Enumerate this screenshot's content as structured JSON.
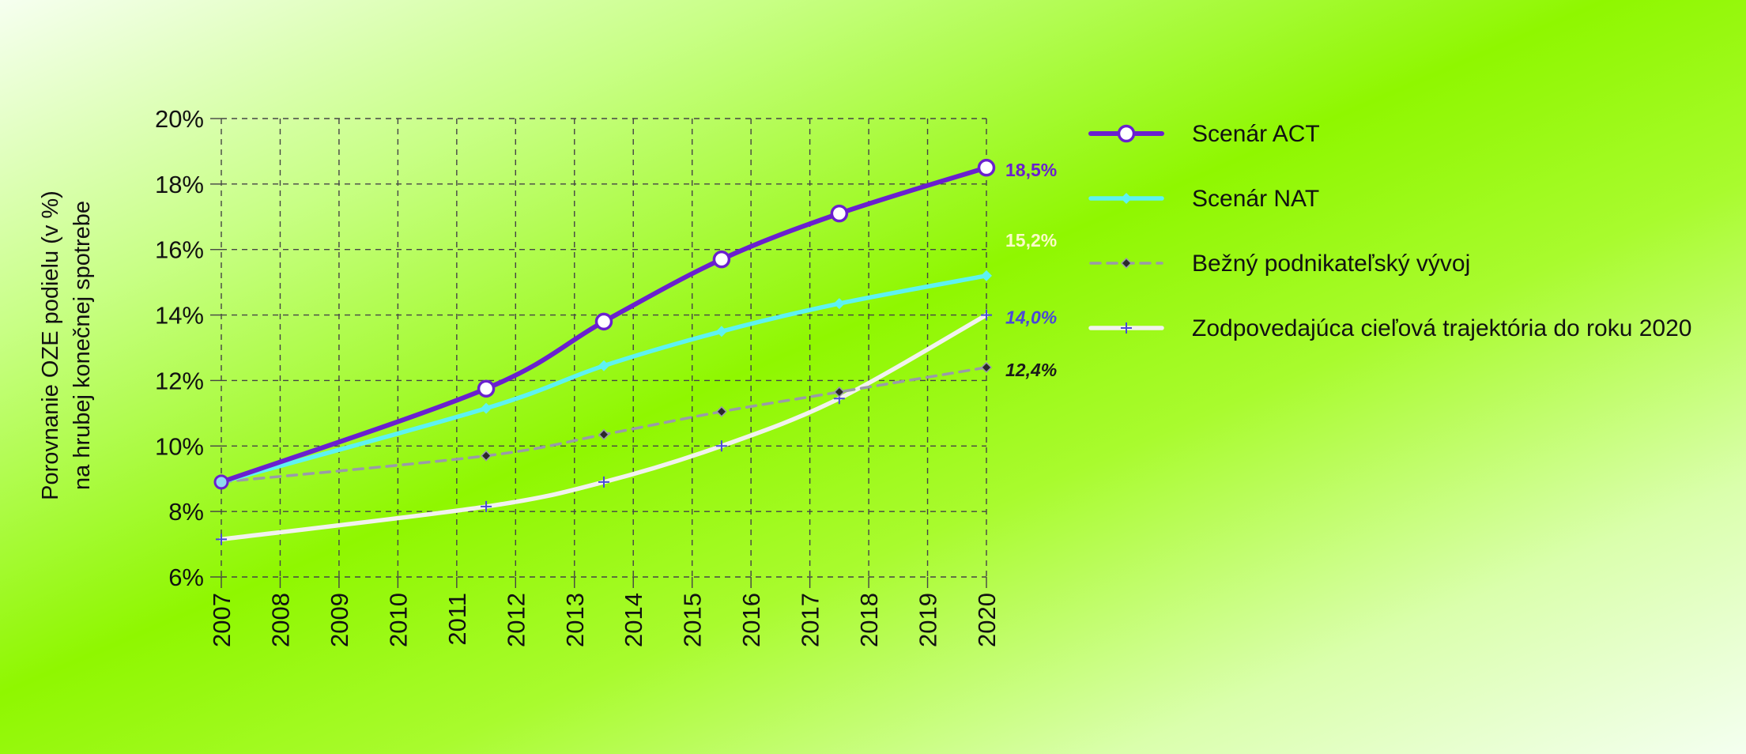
{
  "chart_data": {
    "type": "line",
    "title": "",
    "xlabel": "",
    "ylabel": [
      "Porovnanie OZE podielu (v %)",
      "na hrubej konečnej spotrebe"
    ],
    "x_ticks": [
      "2007",
      "2008",
      "2009",
      "2010",
      "2011",
      "2012",
      "2013",
      "2014",
      "2015",
      "2016",
      "2017",
      "2018",
      "2019",
      "2020"
    ],
    "y_ticks": [
      "6%",
      "8%",
      "10%",
      "12%",
      "14%",
      "16%",
      "18%",
      "20%"
    ],
    "xlim": [
      2007,
      2020
    ],
    "ylim": [
      6,
      20
    ],
    "grid": true,
    "legend_position": "right",
    "series": [
      {
        "name": "Scenár ACT",
        "color": "#6a1fcf",
        "marker": "circle",
        "line_style": "solid",
        "x": [
          2007,
          2011.5,
          2013.5,
          2015.5,
          2017.5,
          2020
        ],
        "y": [
          8.9,
          11.75,
          13.8,
          15.7,
          17.1,
          18.5
        ],
        "end_label": "18,5%",
        "end_label_color": "#6a1fcf",
        "end_label_italic": false
      },
      {
        "name": "Scenár NAT",
        "color": "#5ef2f2",
        "marker": "diamond",
        "line_style": "solid",
        "x": [
          2007,
          2011.5,
          2013.5,
          2015.5,
          2017.5,
          2020
        ],
        "y": [
          8.9,
          11.15,
          12.45,
          13.5,
          14.35,
          15.2
        ],
        "end_label": "15,2%",
        "end_label_color": "#fbfbc8",
        "end_label_italic": false
      },
      {
        "name": "Bežný podnikateľský vývoj",
        "color": "#9a9aa8",
        "marker": "diamond-dark",
        "line_style": "dashed",
        "x": [
          2007,
          2011.5,
          2013.5,
          2015.5,
          2017.5,
          2020
        ],
        "y": [
          8.9,
          9.7,
          10.35,
          11.05,
          11.65,
          12.4
        ],
        "end_label": "12,4%",
        "end_label_color": "#1a1a1a",
        "end_label_italic": true
      },
      {
        "name": "Zodpovedajúca cieľová trajektória do roku 2020",
        "color": "#f2f2ee",
        "marker": "plus",
        "line_style": "solid",
        "x": [
          2007,
          2011.5,
          2013.5,
          2015.5,
          2017.5,
          2020
        ],
        "y": [
          7.15,
          8.15,
          8.9,
          10.0,
          11.45,
          14.0
        ],
        "end_label": "14,0%",
        "end_label_color": "#4a48d8",
        "end_label_italic": true
      }
    ]
  }
}
